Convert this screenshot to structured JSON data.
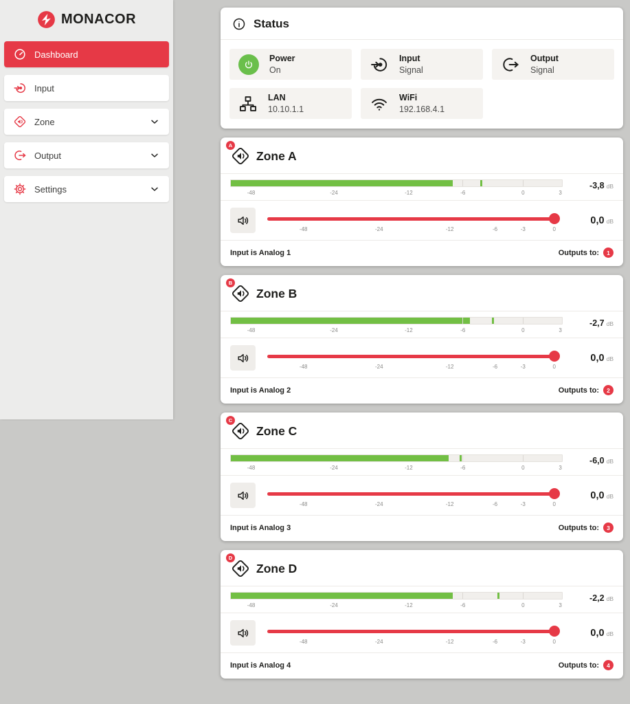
{
  "colors": {
    "accent_red": "#e63946",
    "meter_green": "#72bf44",
    "power_green": "#6abf4b",
    "page_bg": "#c9c9c7",
    "sidebar_bg": "#ececeb"
  },
  "sidebar": {
    "logo_text": "MONACOR",
    "items": [
      {
        "label": "Dashboard",
        "icon": "speedometer-icon",
        "active": true,
        "expandable": false
      },
      {
        "label": "Input",
        "icon": "input-icon",
        "active": false,
        "expandable": false
      },
      {
        "label": "Zone",
        "icon": "zone-diamond-icon",
        "active": false,
        "expandable": true
      },
      {
        "label": "Output",
        "icon": "output-icon",
        "active": false,
        "expandable": true
      },
      {
        "label": "Settings",
        "icon": "gear-icon",
        "active": false,
        "expandable": true
      }
    ]
  },
  "status": {
    "title": "Status",
    "tiles": [
      {
        "icon": "power-icon",
        "label": "Power",
        "value": "On"
      },
      {
        "icon": "input-icon",
        "label": "Input",
        "value": "Signal"
      },
      {
        "icon": "output-icon",
        "label": "Output",
        "value": "Signal"
      },
      {
        "icon": "lan-icon",
        "label": "LAN",
        "value": "10.10.1.1"
      },
      {
        "icon": "wifi-icon",
        "label": "WiFi",
        "value": "192.168.4.1"
      }
    ]
  },
  "meter_scale": [
    {
      "label": "-48",
      "pct": 6.3
    },
    {
      "label": "-24",
      "pct": 31.2
    },
    {
      "label": "-12",
      "pct": 53.7
    },
    {
      "label": "-6",
      "pct": 70.0,
      "separator": true
    },
    {
      "label": "0",
      "pct": 88.1,
      "separator": true
    },
    {
      "label": "3",
      "pct": 99.3
    }
  ],
  "slider_scale": [
    {
      "label": "-48",
      "pct": 12.4
    },
    {
      "label": "-24",
      "pct": 38.3
    },
    {
      "label": "-12",
      "pct": 62.5
    },
    {
      "label": "-6",
      "pct": 78.0
    },
    {
      "label": "-3",
      "pct": 87.6
    },
    {
      "label": "0",
      "pct": 98.3
    }
  ],
  "zones": [
    {
      "letter": "A",
      "title": "Zone A",
      "meter": {
        "value": "-3,8",
        "unit": "dB",
        "fill_pct": 67.0,
        "peak_pct": 75.3
      },
      "slider": {
        "value": "0,0",
        "unit": "dB",
        "thumb_pct": 98.3
      },
      "input_label": "Input is Analog 1",
      "outputs_label": "Outputs to:",
      "output_badge": "1"
    },
    {
      "letter": "B",
      "title": "Zone B",
      "meter": {
        "value": "-2,7",
        "unit": "dB",
        "fill_pct": 72.2,
        "peak_pct": 78.9
      },
      "slider": {
        "value": "0,0",
        "unit": "dB",
        "thumb_pct": 98.3
      },
      "input_label": "Input is Analog 2",
      "outputs_label": "Outputs to:",
      "output_badge": "2"
    },
    {
      "letter": "C",
      "title": "Zone C",
      "meter": {
        "value": "-6,0",
        "unit": "dB",
        "fill_pct": 65.7,
        "peak_pct": 69.1
      },
      "slider": {
        "value": "0,0",
        "unit": "dB",
        "thumb_pct": 98.3
      },
      "input_label": "Input is Analog 3",
      "outputs_label": "Outputs to:",
      "output_badge": "3"
    },
    {
      "letter": "D",
      "title": "Zone D",
      "meter": {
        "value": "-2,2",
        "unit": "dB",
        "fill_pct": 67.0,
        "peak_pct": 80.5
      },
      "slider": {
        "value": "0,0",
        "unit": "dB",
        "thumb_pct": 98.3
      },
      "input_label": "Input is Analog 4",
      "outputs_label": "Outputs to:",
      "output_badge": "4"
    }
  ]
}
